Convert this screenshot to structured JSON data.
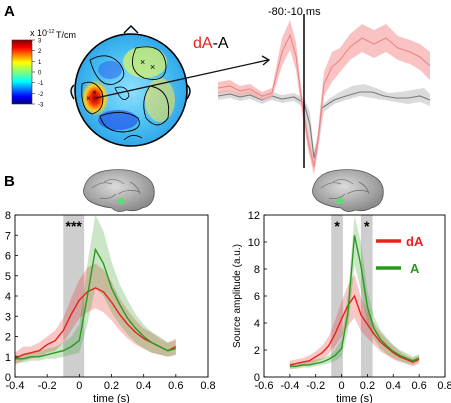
{
  "panel_a": {
    "letter": "A",
    "colorbar": {
      "exponent": "x 10",
      "exponent_power": "-12",
      "unit": "T/cm",
      "ticks": [
        "3",
        "2",
        "1",
        "0",
        "-1",
        "-2",
        "-3"
      ]
    },
    "condition_label": {
      "da": "dA",
      "sep": "-",
      "a": "A"
    },
    "time_window": "-80:-10 ms"
  },
  "panel_b": {
    "letter": "B",
    "colors": {
      "da": "#e8201c",
      "a": "#2a9a1e",
      "window": "#9a9a9a"
    },
    "legend": [
      {
        "label": "dA",
        "color": "#e8201c"
      },
      {
        "label": "A",
        "color": "#2a9a1e"
      }
    ]
  },
  "chart_data": [
    {
      "type": "line",
      "title": "",
      "xlabel": "time (s)",
      "ylabel": "",
      "xlim": [
        -0.4,
        0.8
      ],
      "ylim": [
        0,
        8
      ],
      "xticks": [
        "-0.4",
        "-0.2",
        "0",
        "0.2",
        "0.4",
        "0.6",
        "0.8"
      ],
      "yticks": [
        "0",
        "1",
        "2",
        "3",
        "4",
        "5",
        "6",
        "7",
        "8"
      ],
      "significance_windows": [
        {
          "x0": -0.1,
          "x1": 0.03,
          "label": "***"
        }
      ],
      "series": [
        {
          "name": "dA",
          "color": "#e8201c",
          "x": [
            -0.4,
            -0.35,
            -0.3,
            -0.25,
            -0.2,
            -0.15,
            -0.1,
            -0.05,
            0,
            0.05,
            0.1,
            0.15,
            0.2,
            0.25,
            0.3,
            0.35,
            0.4,
            0.45,
            0.5,
            0.55,
            0.6
          ],
          "values": [
            0.9,
            1.1,
            1.2,
            1.3,
            1.6,
            1.8,
            2.3,
            3.1,
            3.8,
            4.2,
            4.4,
            4.2,
            3.7,
            3.1,
            2.6,
            2.2,
            1.9,
            1.7,
            1.5,
            1.3,
            1.5
          ],
          "lower": [
            0.6,
            0.8,
            0.9,
            1.0,
            1.2,
            1.3,
            1.7,
            2.3,
            2.9,
            3.2,
            3.4,
            3.2,
            2.8,
            2.3,
            1.9,
            1.6,
            1.4,
            1.2,
            1.1,
            1.0,
            1.1
          ],
          "upper": [
            1.2,
            1.5,
            1.5,
            1.7,
            2.0,
            2.3,
            2.9,
            3.9,
            4.8,
            5.4,
            5.6,
            5.3,
            4.7,
            3.9,
            3.3,
            2.8,
            2.4,
            2.2,
            1.9,
            1.7,
            1.9
          ]
        },
        {
          "name": "A",
          "color": "#2a9a1e",
          "x": [
            -0.4,
            -0.35,
            -0.3,
            -0.25,
            -0.2,
            -0.15,
            -0.1,
            -0.05,
            0,
            0.05,
            0.1,
            0.15,
            0.2,
            0.25,
            0.3,
            0.35,
            0.4,
            0.45,
            0.5,
            0.55,
            0.6
          ],
          "values": [
            0.9,
            0.9,
            1.0,
            1.0,
            1.1,
            1.2,
            1.3,
            1.5,
            1.8,
            4.0,
            6.3,
            5.6,
            4.4,
            3.6,
            2.9,
            2.4,
            2.0,
            1.7,
            1.5,
            1.3,
            1.4
          ],
          "lower": [
            0.7,
            0.7,
            0.8,
            0.8,
            0.9,
            0.9,
            1.0,
            1.1,
            1.2,
            2.6,
            4.4,
            4.0,
            3.2,
            2.6,
            2.1,
            1.7,
            1.4,
            1.2,
            1.1,
            1.0,
            1.1
          ],
          "upper": [
            1.1,
            1.1,
            1.2,
            1.3,
            1.4,
            1.5,
            1.7,
            2.0,
            2.6,
            5.6,
            8.0,
            7.2,
            5.7,
            4.6,
            3.8,
            3.1,
            2.6,
            2.2,
            2.0,
            1.7,
            1.8
          ]
        }
      ]
    },
    {
      "type": "line",
      "title": "",
      "xlabel": "time (s)",
      "ylabel": "Source amplitude (a.u.)",
      "xlim": [
        -0.6,
        0.8
      ],
      "ylim": [
        0,
        12
      ],
      "xticks": [
        "-0.6",
        "-0.4",
        "-0.2",
        "0",
        "0.2",
        "0.4",
        "0.6",
        "0.8"
      ],
      "yticks": [
        "0",
        "2",
        "4",
        "6",
        "8",
        "10",
        "12"
      ],
      "significance_windows": [
        {
          "x0": -0.08,
          "x1": 0.01,
          "label": "*"
        },
        {
          "x0": 0.15,
          "x1": 0.24,
          "label": "*"
        }
      ],
      "series": [
        {
          "name": "dA",
          "color": "#e8201c",
          "x": [
            -0.4,
            -0.35,
            -0.3,
            -0.25,
            -0.2,
            -0.15,
            -0.1,
            -0.05,
            0,
            0.05,
            0.1,
            0.15,
            0.2,
            0.25,
            0.3,
            0.35,
            0.4,
            0.45,
            0.5,
            0.55,
            0.6
          ],
          "values": [
            0.9,
            1.0,
            1.1,
            1.2,
            1.5,
            1.8,
            2.3,
            3.2,
            4.3,
            5.3,
            6.0,
            4.6,
            3.9,
            3.2,
            2.6,
            2.2,
            1.8,
            1.5,
            1.3,
            1.1,
            1.3
          ],
          "lower": [
            0.6,
            0.7,
            0.8,
            0.9,
            1.1,
            1.3,
            1.7,
            2.3,
            3.0,
            3.8,
            4.4,
            3.4,
            2.9,
            2.4,
            1.9,
            1.6,
            1.3,
            1.1,
            1.0,
            0.8,
            1.0
          ],
          "upper": [
            1.2,
            1.3,
            1.4,
            1.6,
            1.9,
            2.3,
            3.0,
            4.2,
            5.6,
            6.8,
            7.6,
            5.9,
            4.9,
            4.0,
            3.3,
            2.8,
            2.3,
            1.9,
            1.6,
            1.4,
            1.6
          ]
        },
        {
          "name": "A",
          "color": "#2a9a1e",
          "x": [
            -0.4,
            -0.35,
            -0.3,
            -0.25,
            -0.2,
            -0.15,
            -0.1,
            -0.05,
            0,
            0.05,
            0.1,
            0.15,
            0.2,
            0.25,
            0.3,
            0.35,
            0.4,
            0.45,
            0.5,
            0.55,
            0.6
          ],
          "values": [
            0.8,
            0.8,
            0.9,
            0.9,
            1.0,
            1.1,
            1.3,
            1.6,
            2.1,
            4.8,
            10.5,
            8.2,
            5.2,
            3.6,
            2.8,
            2.3,
            1.9,
            1.6,
            1.4,
            1.2,
            1.4
          ],
          "lower": [
            0.6,
            0.6,
            0.7,
            0.7,
            0.8,
            0.9,
            1.0,
            1.2,
            1.5,
            3.4,
            8.3,
            6.4,
            4.0,
            2.8,
            2.1,
            1.7,
            1.4,
            1.2,
            1.0,
            0.9,
            1.1
          ],
          "upper": [
            1.0,
            1.0,
            1.1,
            1.2,
            1.3,
            1.4,
            1.6,
            2.0,
            2.8,
            6.2,
            11.9,
            10.0,
            6.4,
            4.5,
            3.5,
            2.9,
            2.4,
            2.0,
            1.8,
            1.5,
            1.7
          ]
        }
      ]
    }
  ]
}
